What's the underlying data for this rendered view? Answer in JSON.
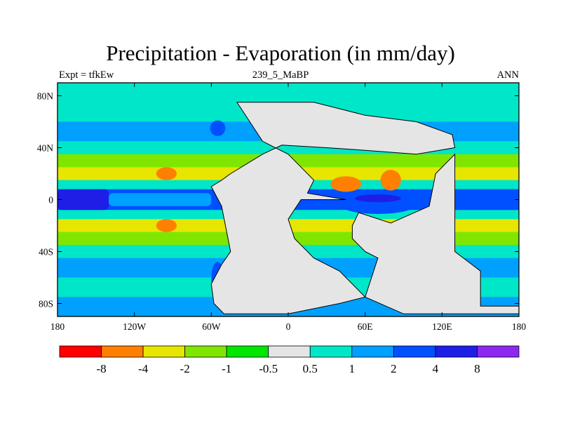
{
  "title": "Precipitation - Evaporation (in mm/day)",
  "left_label": "Expt = tfkEw",
  "center_label": "239_5_MaBP",
  "right_label": "ANN",
  "colors": {
    "land": "#e5e5e5",
    "bands": [
      "#ff0000",
      "#ff8000",
      "#e6e600",
      "#80e600",
      "#00e600",
      "#e5e5e5",
      "#00e6c8",
      "#00a0ff",
      "#0050ff",
      "#1e1ee6",
      "#8c28f0"
    ]
  },
  "chart_data": {
    "type": "heatmap",
    "title": "Precipitation - Evaporation (in mm/day)",
    "xlabel": "",
    "ylabel": "",
    "xlim": [
      -180,
      180
    ],
    "ylim": [
      -90,
      90
    ],
    "x_ticks": [
      {
        "value": -180,
        "label": "180"
      },
      {
        "value": -120,
        "label": "120W"
      },
      {
        "value": -60,
        "label": "60W"
      },
      {
        "value": 0,
        "label": "0"
      },
      {
        "value": 60,
        "label": "60E"
      },
      {
        "value": 120,
        "label": "120E"
      },
      {
        "value": 180,
        "label": "180"
      }
    ],
    "y_ticks": [
      {
        "value": 80,
        "label": "80N"
      },
      {
        "value": 40,
        "label": "40N"
      },
      {
        "value": 0,
        "label": "0"
      },
      {
        "value": -40,
        "label": "40S"
      },
      {
        "value": -80,
        "label": "80S"
      }
    ],
    "colorbar": {
      "levels": [
        "-8",
        "-4",
        "-2",
        "-1",
        "-0.5",
        "0.5",
        "1",
        "2",
        "4",
        "8"
      ],
      "colors": [
        "#ff0000",
        "#ff8000",
        "#e6e600",
        "#80e600",
        "#00e600",
        "#e5e5e5",
        "#00e6c8",
        "#00a0ff",
        "#0050ff",
        "#1e1ee6",
        "#8c28f0"
      ]
    },
    "zonal_bands": [
      {
        "lat": [
          75,
          90
        ],
        "level": 6
      },
      {
        "lat": [
          60,
          75
        ],
        "level": 6
      },
      {
        "lat": [
          45,
          60
        ],
        "level": 7
      },
      {
        "lat": [
          35,
          45
        ],
        "level": 6
      },
      {
        "lat": [
          25,
          35
        ],
        "level": 3
      },
      {
        "lat": [
          15,
          25
        ],
        "level": 2
      },
      {
        "lat": [
          8,
          15
        ],
        "level": 6
      },
      {
        "lat": [
          -8,
          8
        ],
        "level": 8
      },
      {
        "lat": [
          -15,
          -8
        ],
        "level": 6
      },
      {
        "lat": [
          -25,
          -15
        ],
        "level": 2
      },
      {
        "lat": [
          -35,
          -25
        ],
        "level": 3
      },
      {
        "lat": [
          -45,
          -35
        ],
        "level": 6
      },
      {
        "lat": [
          -60,
          -45
        ],
        "level": 7
      },
      {
        "lat": [
          -75,
          -60
        ],
        "level": 6
      },
      {
        "lat": [
          -90,
          -75
        ],
        "level": 7
      }
    ],
    "features": [
      {
        "type": "band",
        "lon": [
          -180,
          -140
        ],
        "lat": [
          -8,
          8
        ],
        "level": 9
      },
      {
        "type": "band",
        "lon": [
          -140,
          -60
        ],
        "lat": [
          -5,
          5
        ],
        "level": 7
      },
      {
        "type": "band",
        "lon": [
          130,
          180
        ],
        "lat": [
          -8,
          8
        ],
        "level": 8
      },
      {
        "type": "blob",
        "lon": -95,
        "lat": 20,
        "rx": 8,
        "ry": 5,
        "level": 1
      },
      {
        "type": "blob",
        "lon": -95,
        "lat": -20,
        "rx": 8,
        "ry": 5,
        "level": 1
      },
      {
        "type": "blob",
        "lon": 45,
        "lat": 12,
        "rx": 12,
        "ry": 6,
        "level": 1
      },
      {
        "type": "blob",
        "lon": 80,
        "lat": 15,
        "rx": 8,
        "ry": 8,
        "level": 1
      },
      {
        "type": "blob",
        "lon": 70,
        "lat": -5,
        "rx": 28,
        "ry": 6,
        "level": 8
      },
      {
        "type": "blob",
        "lon": 70,
        "lat": 1,
        "rx": 18,
        "ry": 3,
        "level": 9
      },
      {
        "type": "blob",
        "lon": 75,
        "lat": -25,
        "rx": 18,
        "ry": 6,
        "level": 4
      },
      {
        "type": "blob",
        "lon": -55,
        "lat": -60,
        "rx": 5,
        "ry": 12,
        "level": 8
      },
      {
        "type": "blob",
        "lon": -7,
        "lat": 60,
        "rx": 8,
        "ry": 3,
        "level": 8
      },
      {
        "type": "blob",
        "lon": -55,
        "lat": 55,
        "rx": 6,
        "ry": 6,
        "level": 8
      }
    ],
    "land": [
      {
        "name": "north-landmass",
        "lon_lat": [
          [
            -40,
            75
          ],
          [
            20,
            75
          ],
          [
            40,
            70
          ],
          [
            60,
            65
          ],
          [
            100,
            60
          ],
          [
            128,
            50
          ],
          [
            130,
            40
          ],
          [
            100,
            35
          ],
          [
            60,
            38
          ],
          [
            30,
            40
          ],
          [
            -5,
            42
          ],
          [
            -20,
            35
          ],
          [
            -45,
            20
          ],
          [
            -52,
            15
          ],
          [
            -60,
            10
          ],
          [
            -52,
            -5
          ],
          [
            -48,
            -25
          ],
          [
            -45,
            -40
          ],
          [
            -52,
            -50
          ],
          [
            -60,
            -65
          ],
          [
            -58,
            -80
          ],
          [
            -50,
            -88
          ],
          [
            0,
            -88
          ],
          [
            40,
            -80
          ],
          [
            60,
            -75
          ],
          [
            40,
            -55
          ],
          [
            20,
            -45
          ],
          [
            5,
            -30
          ],
          [
            0,
            -15
          ],
          [
            10,
            0
          ],
          [
            45,
            0
          ],
          [
            15,
            5
          ],
          [
            20,
            15
          ],
          [
            10,
            25
          ],
          [
            0,
            35
          ],
          [
            -20,
            45
          ],
          [
            -30,
            60
          ],
          [
            -40,
            75
          ]
        ]
      },
      {
        "name": "gondwana-east",
        "lon_lat": [
          [
            55,
            -10
          ],
          [
            80,
            -18
          ],
          [
            110,
            -5
          ],
          [
            115,
            20
          ],
          [
            130,
            35
          ],
          [
            130,
            -40
          ],
          [
            150,
            -55
          ],
          [
            150,
            -82
          ],
          [
            180,
            -82
          ],
          [
            180,
            -88
          ],
          [
            90,
            -88
          ],
          [
            60,
            -75
          ],
          [
            70,
            -45
          ],
          [
            60,
            -40
          ],
          [
            50,
            -30
          ],
          [
            50,
            -20
          ],
          [
            55,
            -10
          ]
        ]
      }
    ]
  }
}
